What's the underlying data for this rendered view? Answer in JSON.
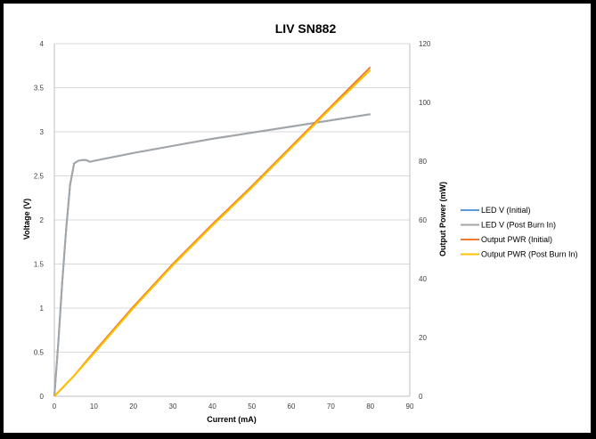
{
  "chart_data": {
    "type": "line",
    "title": "LIV SN882",
    "xlabel": "Current (mA)",
    "ylabel": "Voltage (V)",
    "y2label": "Output Power (mW)",
    "xlim": [
      0,
      90
    ],
    "ylim": [
      0,
      4
    ],
    "y2lim": [
      0,
      120
    ],
    "x_ticks": [
      0,
      10,
      20,
      30,
      40,
      50,
      60,
      70,
      80,
      90
    ],
    "y_ticks": [
      0,
      0.5,
      1,
      1.5,
      2,
      2.5,
      3,
      3.5,
      4
    ],
    "y2_ticks": [
      0,
      20,
      40,
      60,
      80,
      100,
      120
    ],
    "grid": true,
    "legend_position": "right",
    "series": [
      {
        "name": "LED V (Initial)",
        "axis": "left",
        "color": "#5b9bd5",
        "x": [
          0,
          1,
          2,
          3,
          4,
          5,
          6,
          7,
          8,
          9,
          10,
          20,
          30,
          40,
          50,
          60,
          70,
          80
        ],
        "y": [
          0,
          0.6,
          1.3,
          1.9,
          2.4,
          2.64,
          2.67,
          2.68,
          2.68,
          2.66,
          2.67,
          2.76,
          2.84,
          2.92,
          2.99,
          3.06,
          3.13,
          3.2
        ]
      },
      {
        "name": "LED V (Post Burn In)",
        "axis": "left",
        "color": "#a5a5a5",
        "x": [
          0,
          1,
          2,
          3,
          4,
          5,
          6,
          7,
          8,
          9,
          10,
          20,
          30,
          40,
          50,
          60,
          70,
          80
        ],
        "y": [
          0,
          0.6,
          1.3,
          1.9,
          2.4,
          2.64,
          2.67,
          2.68,
          2.68,
          2.66,
          2.67,
          2.76,
          2.84,
          2.92,
          2.99,
          3.06,
          3.13,
          3.2
        ]
      },
      {
        "name": "Output PWR (Initial)",
        "axis": "right",
        "color": "#ed7d31",
        "x": [
          0,
          5,
          10,
          20,
          30,
          40,
          50,
          60,
          70,
          80
        ],
        "y": [
          0,
          7,
          15,
          30.5,
          45,
          58.5,
          71.5,
          85,
          98.5,
          112
        ]
      },
      {
        "name": "Output PWR (Post Burn In)",
        "axis": "right",
        "color": "#ffc000",
        "x": [
          0,
          5,
          10,
          20,
          30,
          40,
          50,
          60,
          70,
          80
        ],
        "y": [
          0,
          7,
          14.5,
          30,
          44.5,
          58,
          71,
          84.5,
          98,
          111
        ]
      }
    ]
  }
}
